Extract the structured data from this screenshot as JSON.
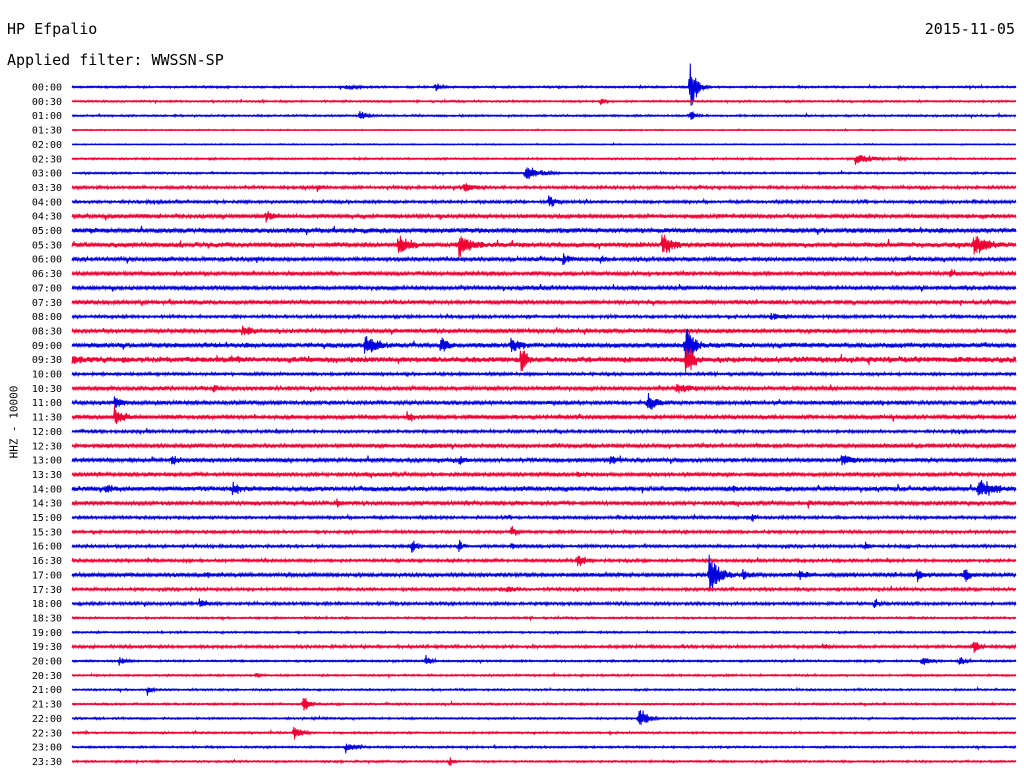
{
  "header": {
    "station": "HP Efpalio",
    "date": "2015-11-05",
    "filter_label": "Applied filter: WWSSN-SP"
  },
  "axis": {
    "y_label": "HHZ - 10000"
  },
  "colors": {
    "trace_even": "#0000dd",
    "trace_odd": "#ee0033",
    "background": "#ffffff",
    "text": "#000000"
  },
  "chart_data": {
    "type": "line",
    "title": "HP Efpalio",
    "ylabel": "HHZ - 10000",
    "row_labels": [
      "00:00",
      "00:30",
      "01:00",
      "01:30",
      "02:00",
      "02:30",
      "03:00",
      "03:30",
      "04:00",
      "04:30",
      "05:00",
      "05:30",
      "06:00",
      "06:30",
      "07:00",
      "07:30",
      "08:00",
      "08:30",
      "09:00",
      "09:30",
      "10:00",
      "10:30",
      "11:00",
      "11:30",
      "12:00",
      "12:30",
      "13:00",
      "13:30",
      "14:00",
      "14:30",
      "15:00",
      "15:30",
      "16:00",
      "16:30",
      "17:00",
      "17:30",
      "18:00",
      "18:30",
      "19:00",
      "19:30",
      "20:00",
      "20:30",
      "21:00",
      "21:30",
      "22:00",
      "22:30",
      "23:00",
      "23:30"
    ],
    "row_colors": [
      "blue",
      "red",
      "blue",
      "red",
      "blue",
      "red",
      "blue",
      "red",
      "blue",
      "red",
      "blue",
      "red",
      "blue",
      "red",
      "blue",
      "red",
      "blue",
      "red",
      "blue",
      "red",
      "blue",
      "red",
      "blue",
      "red",
      "blue",
      "red",
      "blue",
      "red",
      "blue",
      "red",
      "blue",
      "red",
      "blue",
      "red",
      "blue",
      "red",
      "blue",
      "red",
      "blue",
      "red",
      "blue",
      "red",
      "blue",
      "red",
      "blue",
      "red",
      "blue",
      "red"
    ],
    "row_noise": [
      1,
      1,
      1,
      0.6,
      0.6,
      1,
      1,
      1.5,
      1.5,
      2,
      2.5,
      2.5,
      2,
      2,
      2,
      2,
      1.5,
      2,
      2.5,
      3,
      1.5,
      2,
      2,
      2,
      1.5,
      2,
      2,
      2,
      2.5,
      2,
      1.5,
      1.5,
      1.5,
      1.5,
      2,
      1.5,
      1.5,
      1,
      1,
      1.5,
      1,
      1,
      1,
      1,
      1,
      1,
      1,
      1
    ],
    "events": [
      {
        "row": 0,
        "t": 0.29,
        "amp": 4,
        "dur": 0.03
      },
      {
        "row": 0,
        "t": 0.385,
        "amp": 7,
        "dur": 0.01
      },
      {
        "row": 0,
        "t": 0.655,
        "amp": 38,
        "dur": 0.01
      },
      {
        "row": 1,
        "t": 0.56,
        "amp": 6,
        "dur": 0.01
      },
      {
        "row": 2,
        "t": 0.655,
        "amp": 8,
        "dur": 0.01
      },
      {
        "row": 2,
        "t": 0.305,
        "amp": 8,
        "dur": 0.015
      },
      {
        "row": 5,
        "t": 0.83,
        "amp": 7,
        "dur": 0.035
      },
      {
        "row": 5,
        "t": 0.875,
        "amp": 3,
        "dur": 0.02
      },
      {
        "row": 6,
        "t": 0.48,
        "amp": 9,
        "dur": 0.03
      },
      {
        "row": 7,
        "t": 0.415,
        "amp": 6,
        "dur": 0.03
      },
      {
        "row": 7,
        "t": 0.26,
        "amp": 6,
        "dur": 0.01
      },
      {
        "row": 8,
        "t": 0.505,
        "amp": 9,
        "dur": 0.015
      },
      {
        "row": 9,
        "t": 0.205,
        "amp": 8,
        "dur": 0.02
      },
      {
        "row": 10,
        "t": 0.02,
        "amp": 5,
        "dur": 0.01
      },
      {
        "row": 11,
        "t": 0.345,
        "amp": 12,
        "dur": 0.03
      },
      {
        "row": 11,
        "t": 0.41,
        "amp": 14,
        "dur": 0.03
      },
      {
        "row": 11,
        "t": 0.625,
        "amp": 14,
        "dur": 0.025
      },
      {
        "row": 11,
        "t": 0.955,
        "amp": 14,
        "dur": 0.035
      },
      {
        "row": 12,
        "t": 0.52,
        "amp": 8,
        "dur": 0.02
      },
      {
        "row": 12,
        "t": 0.56,
        "amp": 6,
        "dur": 0.01
      },
      {
        "row": 13,
        "t": 0.93,
        "amp": 6,
        "dur": 0.02
      },
      {
        "row": 16,
        "t": 0.74,
        "amp": 5,
        "dur": 0.03
      },
      {
        "row": 17,
        "t": 0.18,
        "amp": 10,
        "dur": 0.02
      },
      {
        "row": 18,
        "t": 0.31,
        "amp": 14,
        "dur": 0.03
      },
      {
        "row": 18,
        "t": 0.39,
        "amp": 10,
        "dur": 0.02
      },
      {
        "row": 18,
        "t": 0.465,
        "amp": 14,
        "dur": 0.02
      },
      {
        "row": 18,
        "t": 0.65,
        "amp": 28,
        "dur": 0.015
      },
      {
        "row": 19,
        "t": 0.475,
        "amp": 18,
        "dur": 0.015
      },
      {
        "row": 19,
        "t": 0.0,
        "amp": 6,
        "dur": 0.05
      },
      {
        "row": 19,
        "t": 0.175,
        "amp": 6,
        "dur": 0.02
      },
      {
        "row": 19,
        "t": 0.65,
        "amp": 22,
        "dur": 0.015
      },
      {
        "row": 21,
        "t": 0.64,
        "amp": 8,
        "dur": 0.04
      },
      {
        "row": 21,
        "t": 0.15,
        "amp": 6,
        "dur": 0.02
      },
      {
        "row": 22,
        "t": 0.045,
        "amp": 10,
        "dur": 0.015
      },
      {
        "row": 22,
        "t": 0.61,
        "amp": 12,
        "dur": 0.02
      },
      {
        "row": 23,
        "t": 0.045,
        "amp": 12,
        "dur": 0.02
      },
      {
        "row": 23,
        "t": 0.355,
        "amp": 7,
        "dur": 0.02
      },
      {
        "row": 25,
        "t": 0.38,
        "amp": 4,
        "dur": 0.03
      },
      {
        "row": 26,
        "t": 0.105,
        "amp": 8,
        "dur": 0.015
      },
      {
        "row": 26,
        "t": 0.41,
        "amp": 8,
        "dur": 0.015
      },
      {
        "row": 26,
        "t": 0.57,
        "amp": 7,
        "dur": 0.02
      },
      {
        "row": 26,
        "t": 0.815,
        "amp": 8,
        "dur": 0.03
      },
      {
        "row": 27,
        "t": 0.535,
        "amp": 5,
        "dur": 0.01
      },
      {
        "row": 28,
        "t": 0.035,
        "amp": 8,
        "dur": 0.02
      },
      {
        "row": 28,
        "t": 0.17,
        "amp": 9,
        "dur": 0.02
      },
      {
        "row": 28,
        "t": 0.96,
        "amp": 13,
        "dur": 0.035
      },
      {
        "row": 28,
        "t": 0.7,
        "amp": 5,
        "dur": 0.02
      },
      {
        "row": 29,
        "t": 0.28,
        "amp": 6,
        "dur": 0.015
      },
      {
        "row": 29,
        "t": 0.78,
        "amp": 7,
        "dur": 0.01
      },
      {
        "row": 30,
        "t": 0.72,
        "amp": 8,
        "dur": 0.01
      },
      {
        "row": 31,
        "t": 0.465,
        "amp": 9,
        "dur": 0.01
      },
      {
        "row": 32,
        "t": 0.36,
        "amp": 10,
        "dur": 0.01
      },
      {
        "row": 32,
        "t": 0.41,
        "amp": 8,
        "dur": 0.01
      },
      {
        "row": 32,
        "t": 0.465,
        "amp": 6,
        "dur": 0.015
      },
      {
        "row": 32,
        "t": 0.84,
        "amp": 8,
        "dur": 0.01
      },
      {
        "row": 33,
        "t": 0.535,
        "amp": 8,
        "dur": 0.02
      },
      {
        "row": 34,
        "t": 0.675,
        "amp": 28,
        "dur": 0.02
      },
      {
        "row": 34,
        "t": 0.71,
        "amp": 8,
        "dur": 0.02
      },
      {
        "row": 34,
        "t": 0.77,
        "amp": 7,
        "dur": 0.02
      },
      {
        "row": 34,
        "t": 0.895,
        "amp": 9,
        "dur": 0.02
      },
      {
        "row": 34,
        "t": 0.945,
        "amp": 10,
        "dur": 0.015
      },
      {
        "row": 34,
        "t": 0.14,
        "amp": 5,
        "dur": 0.02
      },
      {
        "row": 35,
        "t": 0.46,
        "amp": 5,
        "dur": 0.02
      },
      {
        "row": 36,
        "t": 0.135,
        "amp": 7,
        "dur": 0.02
      },
      {
        "row": 36,
        "t": 0.85,
        "amp": 7,
        "dur": 0.015
      },
      {
        "row": 39,
        "t": 0.795,
        "amp": 6,
        "dur": 0.01
      },
      {
        "row": 39,
        "t": 0.955,
        "amp": 12,
        "dur": 0.01
      },
      {
        "row": 40,
        "t": 0.05,
        "amp": 6,
        "dur": 0.015
      },
      {
        "row": 40,
        "t": 0.375,
        "amp": 9,
        "dur": 0.01
      },
      {
        "row": 40,
        "t": 0.9,
        "amp": 6,
        "dur": 0.02
      },
      {
        "row": 40,
        "t": 0.94,
        "amp": 7,
        "dur": 0.01
      },
      {
        "row": 41,
        "t": 0.195,
        "amp": 5,
        "dur": 0.01
      },
      {
        "row": 42,
        "t": 0.08,
        "amp": 6,
        "dur": 0.01
      },
      {
        "row": 43,
        "t": 0.245,
        "amp": 12,
        "dur": 0.01
      },
      {
        "row": 44,
        "t": 0.6,
        "amp": 14,
        "dur": 0.015
      },
      {
        "row": 45,
        "t": 0.235,
        "amp": 9,
        "dur": 0.015
      },
      {
        "row": 46,
        "t": 0.29,
        "amp": 7,
        "dur": 0.02
      },
      {
        "row": 47,
        "t": 0.4,
        "amp": 6,
        "dur": 0.01
      }
    ]
  }
}
